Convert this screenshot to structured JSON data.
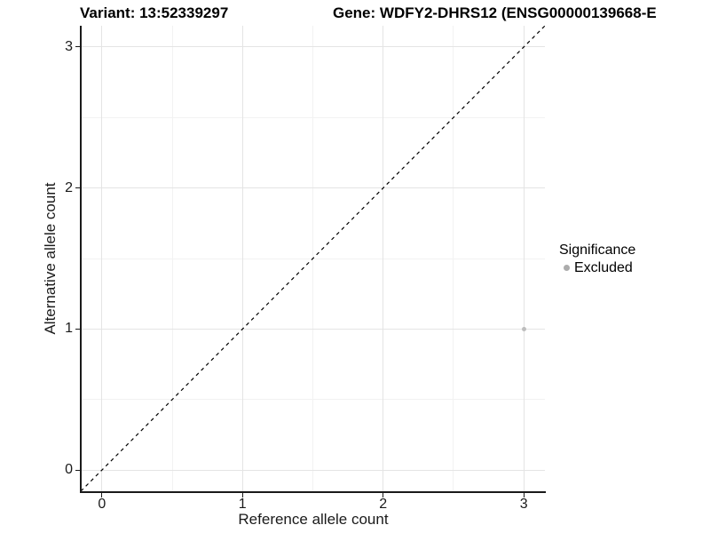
{
  "header": {
    "variant_title": "Variant: 13:52339297",
    "gene_title": "Gene: WDFY2-DHRS12 (ENSG00000139668-E"
  },
  "chart_data": {
    "type": "scatter",
    "xlabel": "Reference allele count",
    "ylabel": "Alternative allele count",
    "xlim": [
      -0.15,
      3.15
    ],
    "ylim": [
      -0.15,
      3.15
    ],
    "x_ticks": [
      0,
      1,
      2,
      3
    ],
    "y_ticks": [
      0,
      1,
      2,
      3
    ],
    "grid": {
      "major_x": [
        0,
        1,
        2,
        3
      ],
      "major_y": [
        0,
        1,
        2,
        3
      ],
      "minor_x": [
        0.5,
        1.5,
        2.5
      ],
      "minor_y": [
        0.5,
        1.5,
        2.5
      ],
      "major_color": "#e4e4e4",
      "minor_color": "#f2f2f2"
    },
    "reference_line": {
      "type": "identity",
      "from": [
        -0.15,
        -0.15
      ],
      "to": [
        3.15,
        3.15
      ],
      "style": "dashed",
      "color": "#000000"
    },
    "series": [
      {
        "name": "Excluded",
        "color": "#bdbdbd",
        "points": [
          [
            3,
            1
          ]
        ],
        "point_radius": 2.5
      }
    ],
    "legend": {
      "title": "Significance",
      "position": "right",
      "entries": [
        {
          "label": "Excluded",
          "color": "#acacac"
        }
      ]
    }
  }
}
